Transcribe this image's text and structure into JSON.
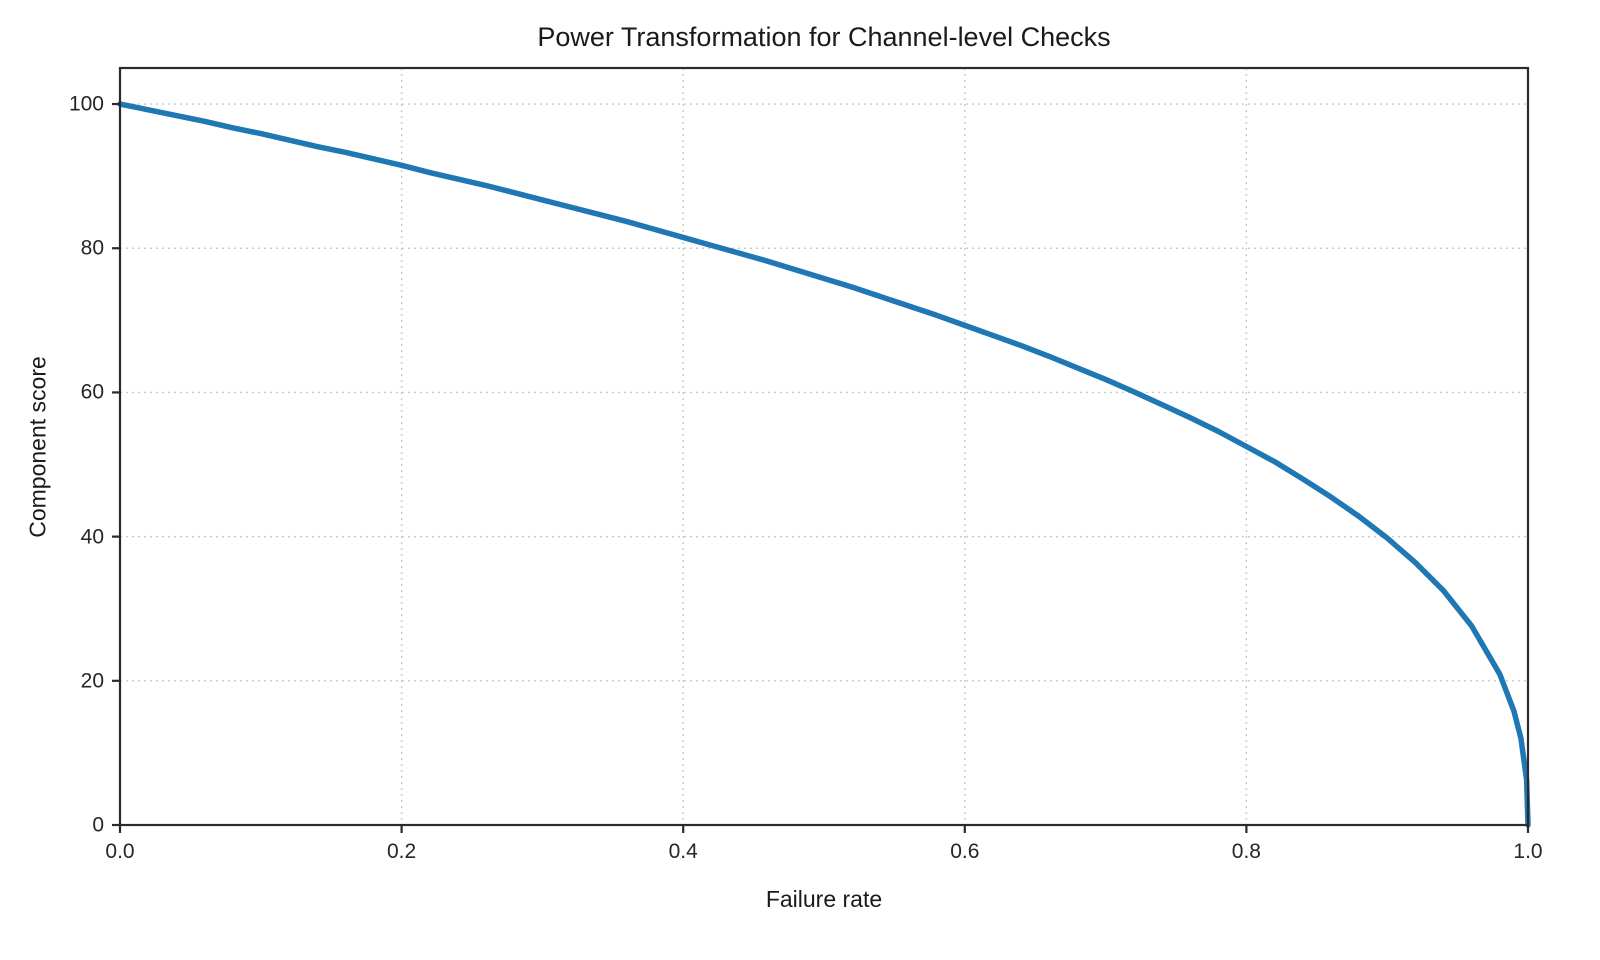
{
  "chart_data": {
    "type": "line",
    "title": "Power Transformation for Channel-level Checks",
    "xlabel": "Failure rate",
    "ylabel": "Component score",
    "xlim": [
      0,
      1
    ],
    "ylim": [
      0,
      105
    ],
    "xticks": [
      0.0,
      0.2,
      0.4,
      0.6,
      0.8,
      1.0
    ],
    "xtick_labels": [
      "0.0",
      "0.2",
      "0.4",
      "0.6",
      "0.8",
      "1.0"
    ],
    "yticks": [
      0,
      20,
      40,
      60,
      80,
      100
    ],
    "ytick_labels": [
      "0",
      "20",
      "40",
      "60",
      "80",
      "100"
    ],
    "grid": true,
    "grid_style": "dotted",
    "legend": false,
    "colors": {
      "line": "#1f77b4",
      "grid": "#c9c9c9",
      "spine": "#2b2b2b",
      "text": "#1a1a1a"
    },
    "series": [
      {
        "name": "component-score-curve",
        "color": "#1f77b4",
        "formula_estimate": "score = 100 * (1 - failure_rate)^0.4",
        "x": [
          0.0,
          0.02,
          0.04,
          0.06,
          0.08,
          0.1,
          0.12,
          0.14,
          0.16,
          0.18,
          0.2,
          0.22,
          0.24,
          0.26,
          0.28,
          0.3,
          0.32,
          0.34,
          0.36,
          0.38,
          0.4,
          0.42,
          0.44,
          0.46,
          0.48,
          0.5,
          0.52,
          0.54,
          0.56,
          0.58,
          0.6,
          0.62,
          0.64,
          0.66,
          0.68,
          0.7,
          0.72,
          0.74,
          0.76,
          0.78,
          0.8,
          0.82,
          0.84,
          0.86,
          0.88,
          0.9,
          0.92,
          0.94,
          0.96,
          0.98,
          0.99,
          0.995,
          0.999,
          1.0
        ],
        "y": [
          100.0,
          99.2,
          98.4,
          97.6,
          96.7,
          95.9,
          95.0,
          94.1,
          93.3,
          92.4,
          91.5,
          90.5,
          89.6,
          88.7,
          87.7,
          86.7,
          85.7,
          84.7,
          83.7,
          82.6,
          81.5,
          80.4,
          79.3,
          78.2,
          77.0,
          75.8,
          74.6,
          73.3,
          72.0,
          70.7,
          69.3,
          67.9,
          66.5,
          65.0,
          63.4,
          61.8,
          60.1,
          58.3,
          56.5,
          54.6,
          52.5,
          50.4,
          48.0,
          45.5,
          42.8,
          39.8,
          36.4,
          32.5,
          27.6,
          20.9,
          15.8,
          12.0,
          6.3,
          0.0
        ]
      }
    ]
  }
}
